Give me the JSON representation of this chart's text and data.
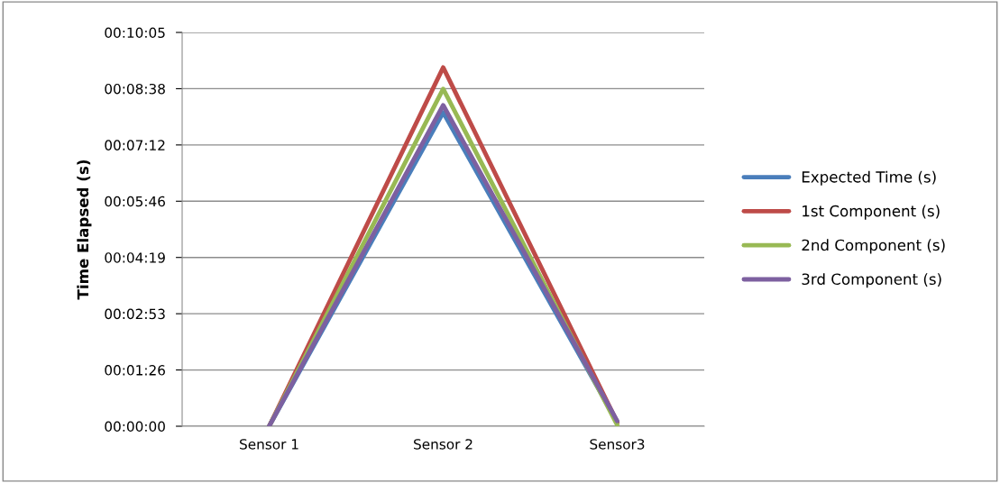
{
  "chart_data": {
    "type": "line",
    "ylabel": "Time Elapsed (s)",
    "categories": [
      "Sensor 1",
      "Sensor 2",
      "Sensor3"
    ],
    "series": [
      {
        "name": "Expected Time (s)",
        "color": "#4a7ebb",
        "values": [
          0,
          482,
          6
        ]
      },
      {
        "name": "1st Component (s)",
        "color": "#be4b48",
        "values": [
          0,
          551,
          6
        ]
      },
      {
        "name": "2nd Component (s)",
        "color": "#98b954",
        "values": [
          0,
          518,
          2
        ]
      },
      {
        "name": "3rd Component (s)",
        "color": "#7d60a0",
        "values": [
          0,
          493,
          8
        ]
      }
    ],
    "ylim": [
      0,
      604.8
    ],
    "yticks": [
      {
        "value": 0,
        "label": "00:00:00"
      },
      {
        "value": 86.4,
        "label": "00:01:26"
      },
      {
        "value": 172.8,
        "label": "00:02:53"
      },
      {
        "value": 259.2,
        "label": "00:04:19"
      },
      {
        "value": 345.6,
        "label": "00:05:46"
      },
      {
        "value": 432,
        "label": "00:07:12"
      },
      {
        "value": 518.4,
        "label": "00:08:38"
      },
      {
        "value": 604.8,
        "label": "00:10:05"
      }
    ],
    "grid": "y",
    "legend": "right",
    "marker": "none",
    "line_style": "solid"
  }
}
